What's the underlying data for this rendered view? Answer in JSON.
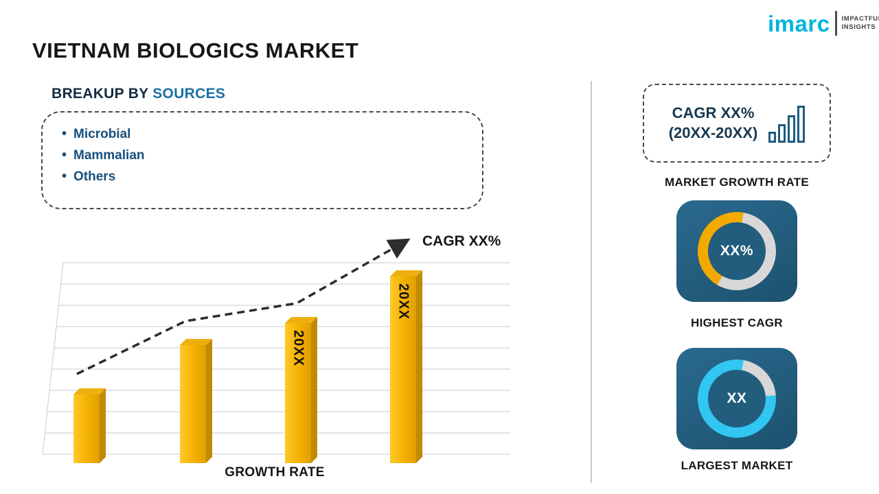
{
  "page_title": "VIETNAM BIOLOGICS MARKET",
  "logo": {
    "brand": "imarc",
    "tagline_line1": "IMPACTFUL",
    "tagline_line2": "INSIGHTS"
  },
  "breakup": {
    "heading_prefix": "BREAKUP BY ",
    "heading_accent": "SOURCES",
    "items": [
      "Microbial",
      "Mammalian",
      "Others"
    ]
  },
  "chart_data": {
    "type": "bar",
    "title": "",
    "xlabel": "GROWTH RATE",
    "ylabel": "",
    "bar_labels": [
      "",
      "",
      "20XX",
      "20XX"
    ],
    "values": [
      25,
      43,
      51,
      68
    ],
    "ylim": [
      0,
      75
    ],
    "grid": true,
    "bar_color": "#F2B200",
    "trendline": {
      "style": "dashed-arrow-up",
      "annotation": "CAGR XX%"
    }
  },
  "right_panel": {
    "growth_card": {
      "line1": "CAGR XX%",
      "line2": "(20XX-20XX)",
      "icon": "bar-chart-icon"
    },
    "captions": {
      "growth": "MARKET GROWTH RATE",
      "cagr": "HIGHEST CAGR",
      "market": "LARGEST MARKET"
    },
    "highest_cagr": {
      "value": "XX%",
      "start_deg": 210,
      "segment_deg": 160,
      "segment_color": "#F2A900",
      "rest_color": "#D8D8D8"
    },
    "largest_market": {
      "value": "XX",
      "start_deg": 85,
      "segment_deg": 285,
      "segment_color": "#31C7F2",
      "rest_color": "#D8D8D8"
    }
  },
  "colors": {
    "card_bg": "#225D7D",
    "accent_blue": "#1A6FA3",
    "text_navy": "#174F7C",
    "gold": "#F2B200",
    "cyan": "#31C7F2",
    "logo_cyan": "#00B5DA"
  }
}
